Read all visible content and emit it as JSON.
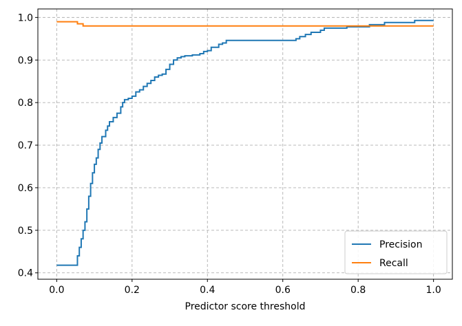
{
  "chart_data": {
    "type": "line",
    "title": "",
    "xlabel": "Predictor score threshold",
    "ylabel": "",
    "xlim": [
      -0.05,
      1.05
    ],
    "ylim": [
      0.385,
      1.02
    ],
    "xticks": [
      0.0,
      0.2,
      0.4,
      0.6,
      0.8,
      1.0
    ],
    "xtick_labels": [
      "0.0",
      "0.2",
      "0.4",
      "0.6",
      "0.8",
      "1.0"
    ],
    "yticks": [
      0.4,
      0.5,
      0.6,
      0.7,
      0.8,
      0.9,
      1.0
    ],
    "ytick_labels": [
      "0.4",
      "0.5",
      "0.6",
      "0.7",
      "0.8",
      "0.9",
      "1.0"
    ],
    "grid": true,
    "grid_style": "dashed",
    "legend_position": "lower-right",
    "series": [
      {
        "name": "Precision",
        "color": "#1f77b4",
        "step": true,
        "points": [
          [
            0.0,
            0.418
          ],
          [
            0.05,
            0.418
          ],
          [
            0.055,
            0.44
          ],
          [
            0.06,
            0.46
          ],
          [
            0.065,
            0.48
          ],
          [
            0.07,
            0.5
          ],
          [
            0.075,
            0.52
          ],
          [
            0.08,
            0.55
          ],
          [
            0.085,
            0.58
          ],
          [
            0.09,
            0.61
          ],
          [
            0.095,
            0.635
          ],
          [
            0.1,
            0.655
          ],
          [
            0.105,
            0.67
          ],
          [
            0.11,
            0.69
          ],
          [
            0.115,
            0.705
          ],
          [
            0.12,
            0.72
          ],
          [
            0.13,
            0.735
          ],
          [
            0.135,
            0.745
          ],
          [
            0.14,
            0.755
          ],
          [
            0.15,
            0.765
          ],
          [
            0.16,
            0.775
          ],
          [
            0.17,
            0.79
          ],
          [
            0.175,
            0.8
          ],
          [
            0.18,
            0.807
          ],
          [
            0.19,
            0.81
          ],
          [
            0.2,
            0.815
          ],
          [
            0.21,
            0.825
          ],
          [
            0.22,
            0.83
          ],
          [
            0.23,
            0.838
          ],
          [
            0.24,
            0.845
          ],
          [
            0.25,
            0.852
          ],
          [
            0.26,
            0.86
          ],
          [
            0.27,
            0.864
          ],
          [
            0.28,
            0.867
          ],
          [
            0.29,
            0.878
          ],
          [
            0.3,
            0.89
          ],
          [
            0.31,
            0.9
          ],
          [
            0.32,
            0.905
          ],
          [
            0.33,
            0.908
          ],
          [
            0.34,
            0.91
          ],
          [
            0.36,
            0.912
          ],
          [
            0.38,
            0.915
          ],
          [
            0.39,
            0.92
          ],
          [
            0.4,
            0.922
          ],
          [
            0.41,
            0.93
          ],
          [
            0.43,
            0.937
          ],
          [
            0.44,
            0.94
          ],
          [
            0.45,
            0.946
          ],
          [
            0.55,
            0.946
          ],
          [
            0.63,
            0.946
          ],
          [
            0.635,
            0.95
          ],
          [
            0.645,
            0.955
          ],
          [
            0.66,
            0.96
          ],
          [
            0.675,
            0.965
          ],
          [
            0.7,
            0.97
          ],
          [
            0.71,
            0.975
          ],
          [
            0.765,
            0.975
          ],
          [
            0.77,
            0.978
          ],
          [
            0.83,
            0.983
          ],
          [
            0.87,
            0.988
          ],
          [
            0.95,
            0.993
          ],
          [
            1.0,
            0.993
          ]
        ]
      },
      {
        "name": "Recall",
        "color": "#ff7f0e",
        "step": true,
        "points": [
          [
            0.0,
            0.99
          ],
          [
            0.055,
            0.99
          ],
          [
            0.055,
            0.985
          ],
          [
            0.07,
            0.985
          ],
          [
            0.07,
            0.98
          ],
          [
            1.0,
            0.98
          ]
        ]
      }
    ]
  }
}
